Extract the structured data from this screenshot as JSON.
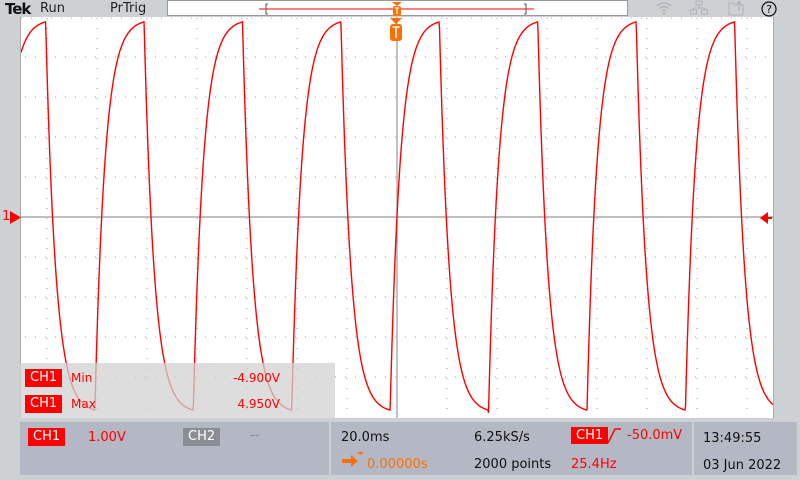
{
  "header": {
    "brand": "Tek",
    "run_state": "Run",
    "trigger_state": "PrTrig",
    "icons": [
      "wifi-icon",
      "network-icon",
      "export-icon",
      "help-icon"
    ],
    "help_glyph": "?"
  },
  "graticule": {
    "channel_marker": "1",
    "trigger_marker_label": "T"
  },
  "waveform": {
    "channel": "CH1",
    "frequency_hz": 25.4,
    "min_v": -4.9,
    "max_v": 4.95,
    "volts_per_div": 1.0,
    "time_per_div_ms": 20.0,
    "trigger_level_v": -0.05,
    "color": "#ff0000"
  },
  "measurements": [
    {
      "source": "CH1",
      "name": "Min",
      "value": "-4.900V"
    },
    {
      "source": "CH1",
      "name": "Max",
      "value": "4.950V"
    }
  ],
  "vertical": {
    "ch1_label": "CH1",
    "ch1_scale": "1.00V",
    "ch2_label": "CH2",
    "ch2_scale": "--"
  },
  "horizontal": {
    "time_div": "20.0ms",
    "position": "0.00000s",
    "sample_rate": "6.25kS/s",
    "record_length": "2000 points"
  },
  "trigger": {
    "source": "CH1",
    "slope": "rising",
    "level": "-50.0mV",
    "frequency": "25.4Hz"
  },
  "clock": {
    "time": "13:49:55",
    "date": "03 Jun 2022"
  },
  "colors": {
    "ch1": "#ff0000",
    "ch2": "#8a8e94",
    "trigger": "#ff7000"
  }
}
